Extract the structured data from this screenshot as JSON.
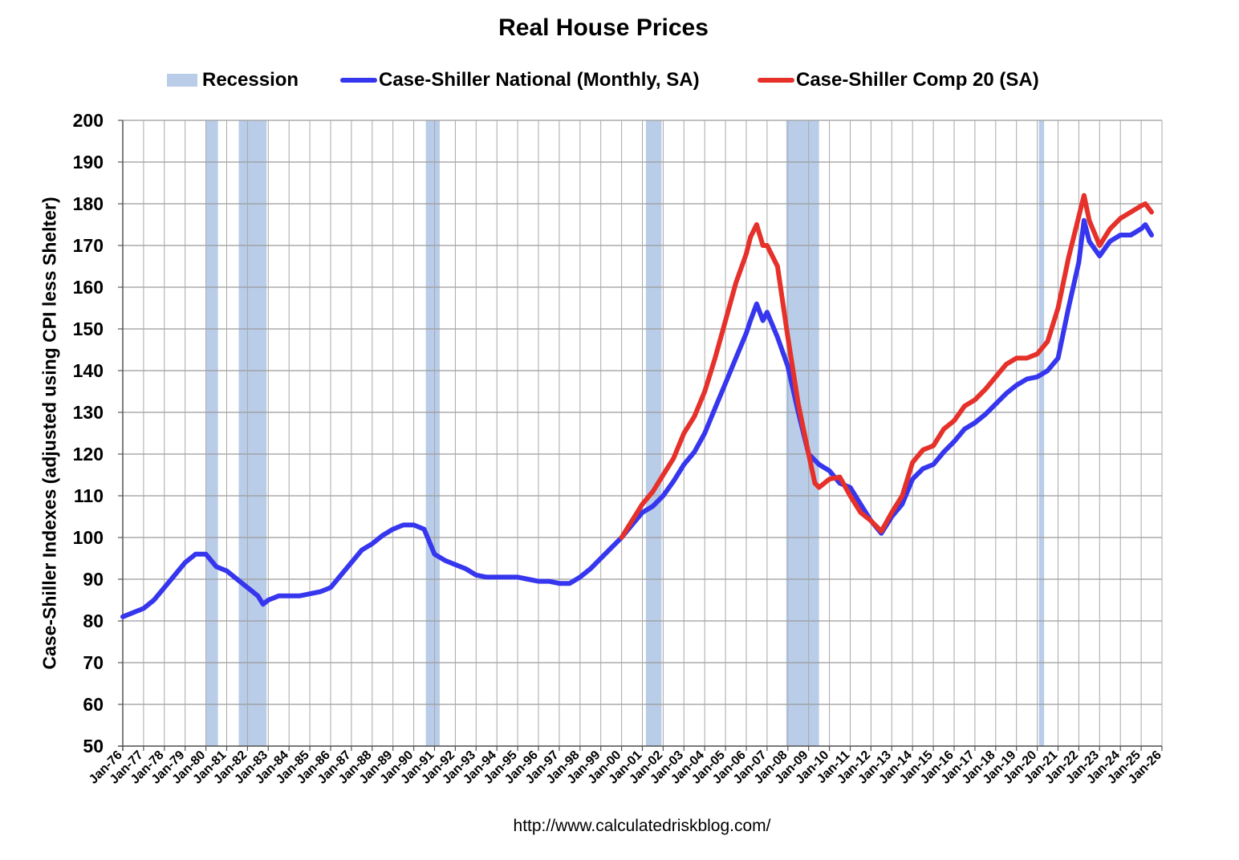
{
  "chart_data": {
    "type": "line",
    "title": "Real House Prices",
    "ylabel": "Case-Shiller Indexes (adjusted using CPI less Shelter)",
    "source": "http://www.calculatedriskblog.com/",
    "ylim": [
      50,
      200
    ],
    "yticks": [
      50,
      60,
      70,
      80,
      90,
      100,
      110,
      120,
      130,
      140,
      150,
      160,
      170,
      180,
      190,
      200
    ],
    "xlim": [
      1976,
      2026
    ],
    "xticks": [
      "Jan-76",
      "Jan-77",
      "Jan-78",
      "Jan-79",
      "Jan-80",
      "Jan-81",
      "Jan-82",
      "Jan-83",
      "Jan-84",
      "Jan-85",
      "Jan-86",
      "Jan-87",
      "Jan-88",
      "Jan-89",
      "Jan-90",
      "Jan-91",
      "Jan-92",
      "Jan-93",
      "Jan-94",
      "Jan-95",
      "Jan-96",
      "Jan-97",
      "Jan-98",
      "Jan-99",
      "Jan-00",
      "Jan-01",
      "Jan-02",
      "Jan-03",
      "Jan-04",
      "Jan-05",
      "Jan-06",
      "Jan-07",
      "Jan-08",
      "Jan-09",
      "Jan-10",
      "Jan-11",
      "Jan-12",
      "Jan-13",
      "Jan-14",
      "Jan-15",
      "Jan-16",
      "Jan-17",
      "Jan-18",
      "Jan-19",
      "Jan-20",
      "Jan-21",
      "Jan-22",
      "Jan-23",
      "Jan-24",
      "Jan-25",
      "Jan-26"
    ],
    "grid": true,
    "legend_position": "top",
    "recession_label": "Recession",
    "recession_color": "#b9cde9",
    "recessions": [
      [
        1980.0,
        1980.58
      ],
      [
        1981.58,
        1982.92
      ],
      [
        1990.58,
        1991.25
      ],
      [
        2001.17,
        2001.92
      ],
      [
        2007.92,
        2009.5
      ],
      [
        2020.08,
        2020.33
      ]
    ],
    "series": [
      {
        "name": "Case-Shiller National (Monthly, SA)",
        "color": "#3636ee",
        "x": [
          1976.0,
          1976.5,
          1977.0,
          1977.5,
          1978.0,
          1978.5,
          1979.0,
          1979.5,
          1980.0,
          1980.5,
          1981.0,
          1981.5,
          1982.0,
          1982.5,
          1982.75,
          1983.0,
          1983.5,
          1984.0,
          1984.5,
          1985.0,
          1985.5,
          1986.0,
          1986.5,
          1987.0,
          1987.5,
          1988.0,
          1988.5,
          1989.0,
          1989.5,
          1990.0,
          1990.5,
          1991.0,
          1991.5,
          1992.0,
          1992.5,
          1993.0,
          1993.5,
          1994.0,
          1994.5,
          1995.0,
          1995.5,
          1996.0,
          1996.5,
          1997.0,
          1997.5,
          1998.0,
          1998.5,
          1999.0,
          1999.5,
          2000.0,
          2000.5,
          2001.0,
          2001.5,
          2002.0,
          2002.5,
          2003.0,
          2003.5,
          2004.0,
          2004.5,
          2005.0,
          2005.5,
          2006.0,
          2006.2,
          2006.5,
          2006.8,
          2007.0,
          2007.5,
          2008.0,
          2008.5,
          2009.0,
          2009.5,
          2010.0,
          2010.5,
          2011.0,
          2011.5,
          2012.0,
          2012.5,
          2013.0,
          2013.5,
          2014.0,
          2014.5,
          2015.0,
          2015.5,
          2016.0,
          2016.5,
          2017.0,
          2017.5,
          2018.0,
          2018.5,
          2019.0,
          2019.5,
          2020.0,
          2020.5,
          2021.0,
          2021.5,
          2022.0,
          2022.25,
          2022.5,
          2023.0,
          2023.5,
          2024.0,
          2024.5,
          2025.0,
          2025.2,
          2025.5
        ],
        "values": [
          81,
          82,
          83,
          85,
          88,
          91,
          94,
          96,
          96,
          93,
          92,
          90,
          88,
          86,
          84,
          85,
          86,
          86,
          86,
          86.5,
          87,
          88,
          91,
          94,
          97,
          98.5,
          100.5,
          102,
          103,
          103,
          102,
          96,
          94.5,
          93.5,
          92.5,
          91,
          90.5,
          90.5,
          90.5,
          90.5,
          90,
          89.5,
          89.5,
          89,
          89,
          90.5,
          92.5,
          95,
          97.5,
          100,
          103,
          106,
          107.5,
          110,
          113.5,
          117.5,
          120.5,
          125,
          131,
          137,
          143,
          149,
          152,
          156,
          152,
          154,
          148,
          141,
          130,
          120,
          117.5,
          116,
          113,
          112,
          108,
          104,
          101,
          105,
          108,
          114,
          116.5,
          117.5,
          120.5,
          123,
          126,
          127.5,
          129.5,
          132,
          134.5,
          136.5,
          138,
          138.5,
          140,
          143,
          155,
          166,
          176,
          171,
          167.5,
          171,
          172.5,
          172.5,
          174,
          175,
          172.5
        ]
      },
      {
        "name": "Case-Shiller Comp 20  (SA)",
        "color": "#e5312a",
        "x": [
          2000.0,
          2000.5,
          2001.0,
          2001.5,
          2002.0,
          2002.5,
          2003.0,
          2003.5,
          2004.0,
          2004.5,
          2005.0,
          2005.5,
          2006.0,
          2006.2,
          2006.5,
          2006.8,
          2007.0,
          2007.5,
          2008.0,
          2008.5,
          2009.0,
          2009.3,
          2009.5,
          2010.0,
          2010.5,
          2011.0,
          2011.5,
          2012.0,
          2012.5,
          2013.0,
          2013.5,
          2014.0,
          2014.5,
          2015.0,
          2015.5,
          2016.0,
          2016.5,
          2017.0,
          2017.5,
          2018.0,
          2018.5,
          2019.0,
          2019.5,
          2020.0,
          2020.5,
          2021.0,
          2021.5,
          2022.0,
          2022.25,
          2022.5,
          2023.0,
          2023.5,
          2024.0,
          2024.5,
          2025.0,
          2025.2,
          2025.5
        ],
        "values": [
          100,
          104,
          108,
          111,
          115,
          119,
          125,
          129,
          135,
          143,
          152,
          161,
          168,
          172,
          175,
          170,
          170,
          165,
          148,
          132,
          120,
          113,
          112,
          114,
          114.5,
          110,
          106,
          104,
          101.5,
          106,
          110,
          118,
          121,
          122,
          126,
          128,
          131.5,
          133,
          135.5,
          138.5,
          141.5,
          143,
          143,
          144,
          147,
          155,
          167,
          177,
          182,
          176,
          170,
          174,
          176.5,
          178,
          179.5,
          180,
          178
        ]
      }
    ]
  }
}
